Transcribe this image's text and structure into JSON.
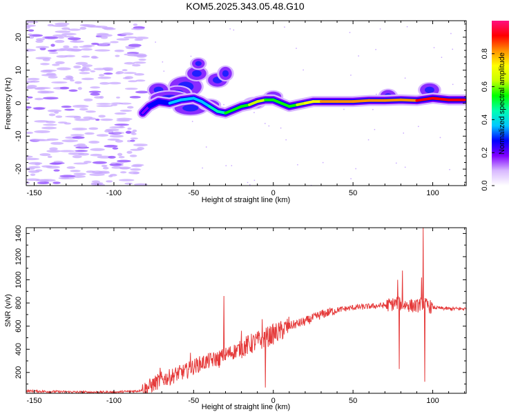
{
  "title": "KOM5.2025.343.05.48.G10",
  "colors": {
    "spectrum_ridge": "#ff0000",
    "snr_line": "#e53a3a",
    "noise_blob": "#c8a8ff"
  },
  "chart_data": [
    {
      "type": "heatmap",
      "xlabel": "Height of straight line (km)",
      "ylabel": "Frequency (Hz)",
      "xlim": [
        -155,
        121
      ],
      "ylim": [
        -25,
        25
      ],
      "xticks": [
        -150,
        -100,
        -50,
        0,
        50,
        100
      ],
      "yticks": [
        -20,
        -10,
        0,
        10,
        20
      ],
      "colorbar": {
        "label": "Normalized spectral amplitude",
        "range": [
          0,
          1
        ],
        "ticks": [
          "0.0",
          "0.2",
          "0.4",
          "0.6",
          "0.8"
        ],
        "colors": [
          "#ffffff",
          "#d8b8ff",
          "#8000ff",
          "#0000ff",
          "#00c8ff",
          "#00ffb0",
          "#00ff00",
          "#c8ff00",
          "#ffff00",
          "#ff9000",
          "#ff0000",
          "#ff1080"
        ]
      },
      "ridge": {
        "x": [
          -82,
          -78,
          -72,
          -65,
          -58,
          -50,
          -45,
          -40,
          -35,
          -30,
          -25,
          -20,
          -15,
          -10,
          -5,
          0,
          5,
          10,
          15,
          20,
          25,
          30,
          40,
          50,
          60,
          70,
          80,
          90,
          100,
          110,
          120
        ],
        "y": [
          -3,
          -1,
          0.5,
          0,
          1,
          1.5,
          0.5,
          -1,
          -2.5,
          -3,
          -2,
          -1,
          -0.5,
          0.5,
          1,
          1,
          0,
          -1,
          -0.5,
          0,
          0.5,
          0.5,
          0.5,
          0.5,
          0.8,
          0.8,
          1,
          0.8,
          1.5,
          1,
          1
        ],
        "amplitude": [
          0.15,
          0.25,
          0.3,
          0.3,
          0.35,
          0.35,
          0.35,
          0.4,
          0.45,
          0.5,
          0.5,
          0.55,
          0.6,
          0.6,
          0.6,
          0.55,
          0.5,
          0.5,
          0.6,
          0.7,
          0.75,
          0.75,
          0.8,
          0.8,
          0.8,
          0.85,
          0.85,
          0.85,
          0.9,
          0.95,
          0.95
        ]
      }
    },
    {
      "type": "line",
      "xlabel": "Height of straight line (km)",
      "ylabel": "SNR (v/v)",
      "xlim": [
        -155,
        121
      ],
      "ylim": [
        20,
        1450
      ],
      "xticks": [
        -150,
        -100,
        -50,
        0,
        50,
        100
      ],
      "yticks": [
        200,
        400,
        600,
        800,
        1000,
        1200,
        1400
      ],
      "series": [
        {
          "x": [
            -155,
            -140,
            -120,
            -100,
            -85,
            -80,
            -75,
            -70,
            -65,
            -60,
            -55,
            -50,
            -45,
            -40,
            -35,
            -30,
            -25,
            -20,
            -15,
            -10,
            -5,
            0,
            5,
            10,
            20,
            30,
            40,
            50,
            60,
            70,
            75,
            78,
            80,
            85,
            90,
            92,
            94,
            96,
            100,
            110,
            121
          ],
          "values": [
            40,
            35,
            30,
            30,
            40,
            60,
            100,
            140,
            160,
            190,
            210,
            250,
            280,
            300,
            320,
            350,
            380,
            410,
            440,
            470,
            500,
            530,
            560,
            600,
            640,
            700,
            740,
            760,
            770,
            780,
            790,
            800,
            790,
            780,
            770,
            790,
            800,
            780,
            760,
            750,
            750
          ]
        }
      ],
      "spikes": [
        {
          "x": -71,
          "y": 240
        },
        {
          "x": -52,
          "y": 370
        },
        {
          "x": -34,
          "y": 240
        },
        {
          "x": -31,
          "y": 860
        },
        {
          "x": -20,
          "y": 560
        },
        {
          "x": -7,
          "y": 660
        },
        {
          "x": -5,
          "y": 70
        },
        {
          "x": 78,
          "y": 1000
        },
        {
          "x": 79,
          "y": 230
        },
        {
          "x": 81,
          "y": 1080
        },
        {
          "x": 93,
          "y": 1020
        },
        {
          "x": 94,
          "y": 1450
        },
        {
          "x": 95,
          "y": 120
        }
      ]
    }
  ]
}
